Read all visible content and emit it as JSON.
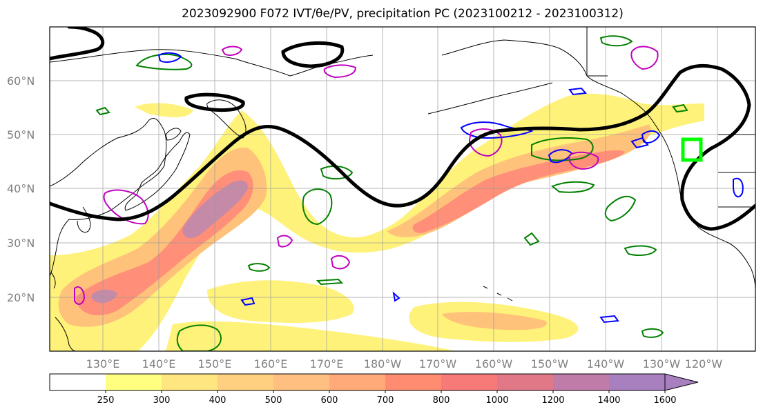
{
  "title": "2023092900 F072 IVT/θe/PV, precipitation PC (2023100212 - 2023100312)",
  "lat_labels": [
    "60°N",
    "50°N",
    "40°N",
    "30°N",
    "20°N"
  ],
  "lon_labels": [
    "130°E",
    "140°E",
    "150°E",
    "160°E",
    "170°E",
    "180°W",
    "170°W",
    "160°W",
    "150°W",
    "140°W",
    "130°W",
    "120°W"
  ],
  "colorbar": {
    "levels": [
      "250",
      "300",
      "400",
      "500",
      "600",
      "700",
      "800",
      "1000",
      "1200",
      "1400",
      "1600"
    ],
    "colors": [
      "#ffffff",
      "#ffff80",
      "#ffe680",
      "#ffd080",
      "#ffbf80",
      "#ffaa78",
      "#ff8c70",
      "#f87a78",
      "#e07888",
      "#c07ca8",
      "#a880c0"
    ]
  },
  "fills": {
    "ivt_light": "#fff27a",
    "ivt_mid": "#ffc27a",
    "ivt_high": "#ff8f78",
    "ivt_max": "#c48aa8",
    "contour_theta": "#000000",
    "contour_green": "#008000",
    "contour_blue": "#0000ff",
    "contour_magenta": "#c000c0",
    "highlight_box": "#00ff00"
  }
}
